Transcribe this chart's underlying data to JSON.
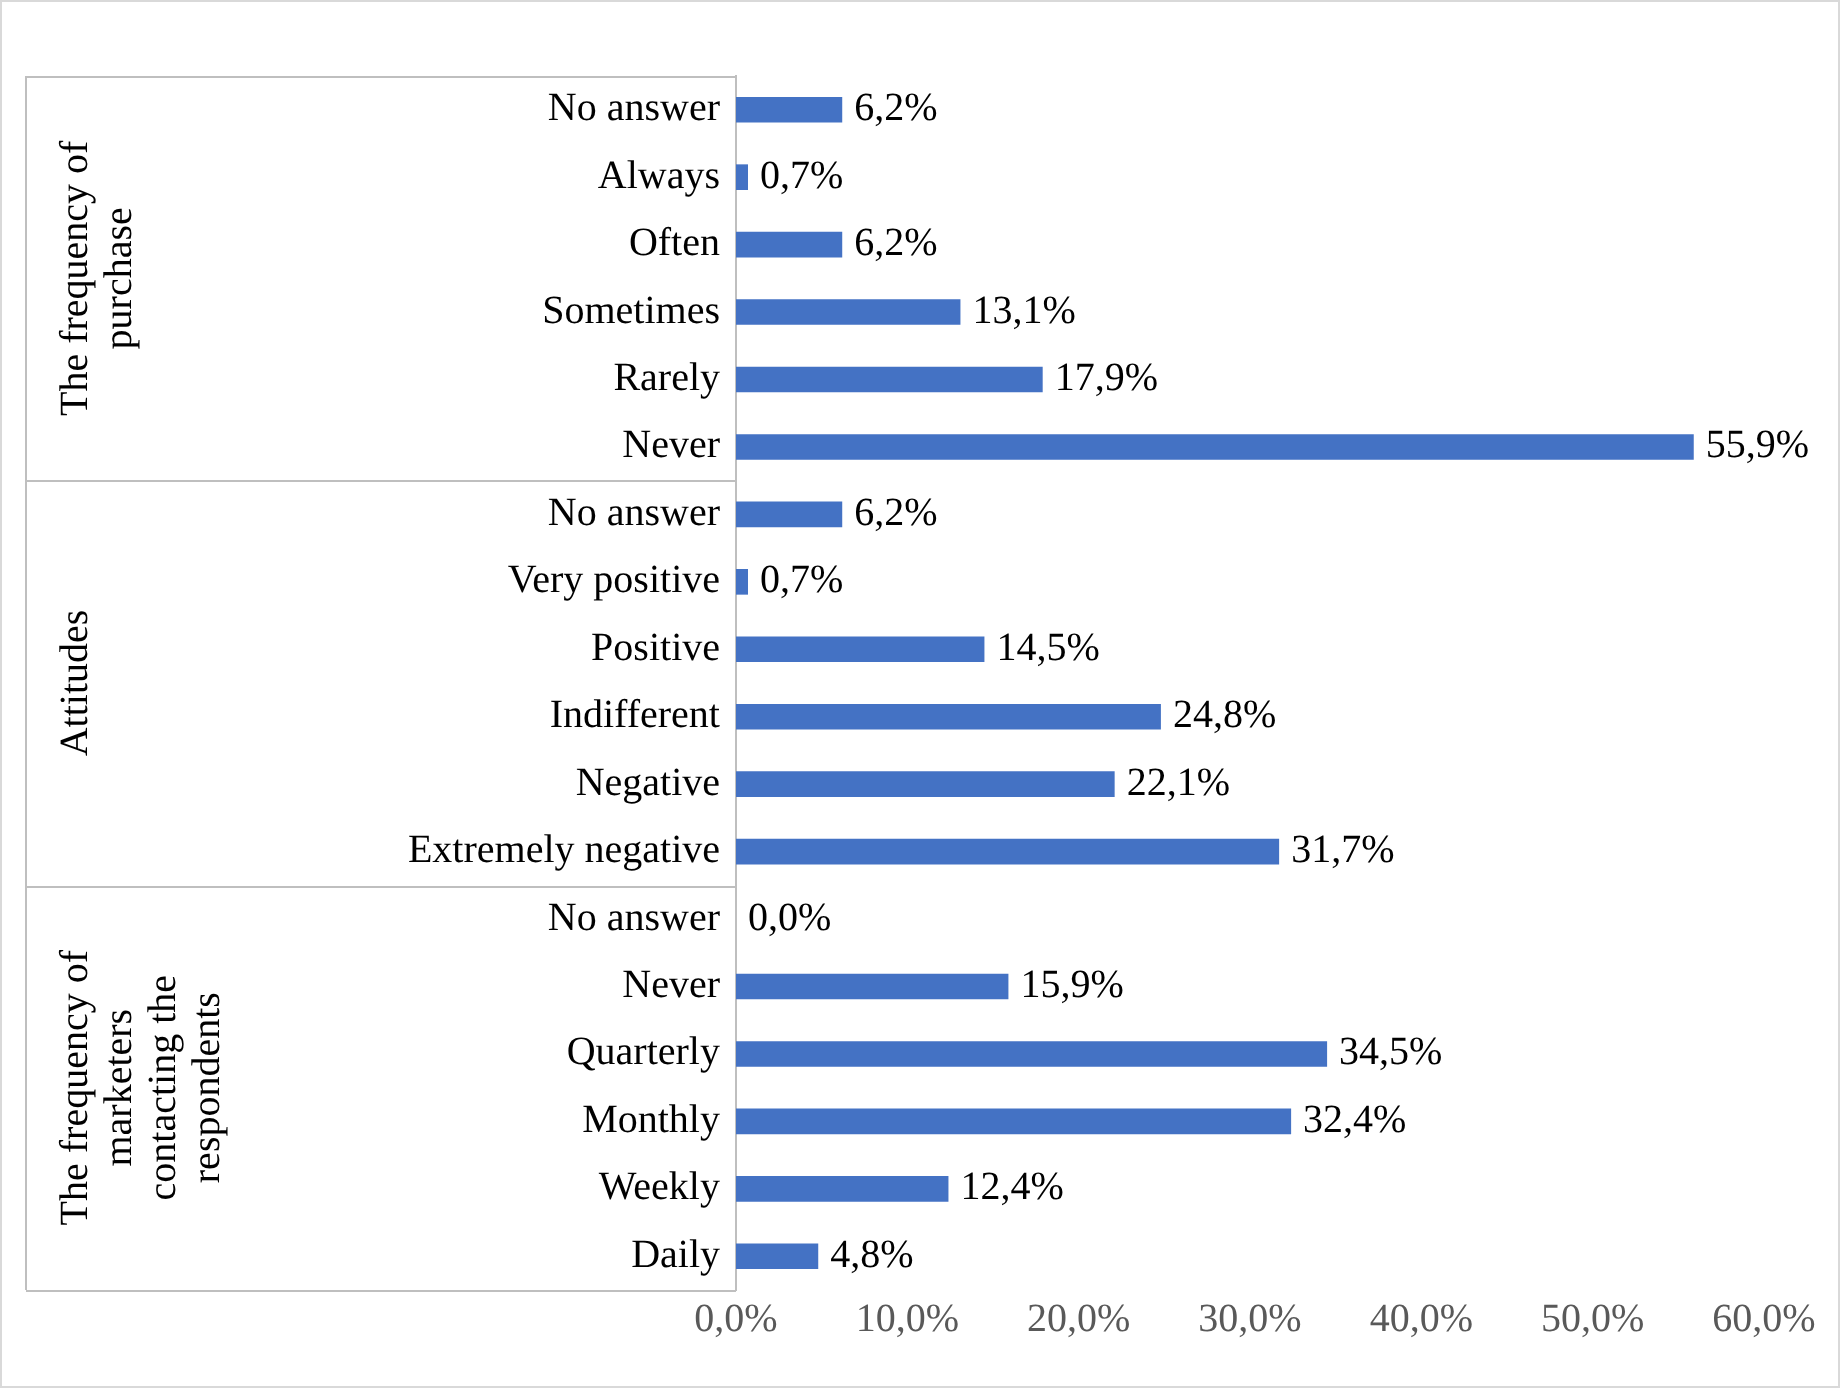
{
  "chart_data": {
    "type": "bar",
    "orientation": "horizontal",
    "categories": [
      "No answer",
      "Always",
      "Often",
      "Sometimes",
      "Rarely",
      "Never",
      "No answer",
      "Very positive",
      "Positive",
      "Indifferent",
      "Negative",
      "Extremely negative",
      "No answer",
      "Never",
      "Quarterly",
      "Monthly",
      "Weekly",
      "Daily"
    ],
    "values": [
      6.2,
      0.7,
      6.2,
      13.1,
      17.9,
      55.9,
      6.2,
      0.7,
      14.5,
      24.8,
      22.1,
      31.7,
      0.0,
      15.9,
      34.5,
      32.4,
      12.4,
      4.8
    ],
    "value_labels": [
      "6,2%",
      "0,7%",
      "6,2%",
      "13,1%",
      "17,9%",
      "55,9%",
      "6,2%",
      "0,7%",
      "14,5%",
      "24,8%",
      "22,1%",
      "31,7%",
      "0,0%",
      "15,9%",
      "34,5%",
      "32,4%",
      "12,4%",
      "4,8%"
    ],
    "color": "#4472c4",
    "xlim": [
      0,
      60
    ],
    "xticks": [
      {
        "value": 0,
        "label": "0,0%"
      },
      {
        "value": 10,
        "label": "10,0%"
      },
      {
        "value": 20,
        "label": "20,0%"
      },
      {
        "value": 30,
        "label": "30,0%"
      },
      {
        "value": 40,
        "label": "40,0%"
      },
      {
        "value": 50,
        "label": "50,0%"
      },
      {
        "value": 60,
        "label": "60,0%"
      }
    ],
    "annotations": [
      "The frequency of purchase",
      "Attitudes",
      "The frequency of marketers contacting the respondents"
    ],
    "grid": false,
    "legend": false
  }
}
